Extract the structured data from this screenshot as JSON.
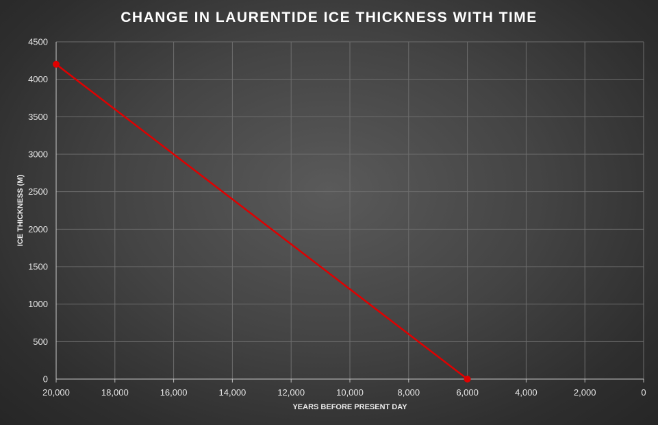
{
  "chart_data": {
    "type": "line",
    "title": "CHANGE IN LAURENTIDE ICE THICKNESS WITH TIME",
    "xlabel": "YEARS BEFORE PRESENT DAY",
    "ylabel": "ICE THICKNESS (M)",
    "x_reversed": true,
    "xlim": [
      20000,
      0
    ],
    "ylim": [
      0,
      4500
    ],
    "x_ticks": [
      "20,000",
      "18,000",
      "16,000",
      "14,000",
      "12,000",
      "10,000",
      "8,000",
      "6,000",
      "4,000",
      "2,000",
      "0"
    ],
    "x_tick_values": [
      20000,
      18000,
      16000,
      14000,
      12000,
      10000,
      8000,
      6000,
      4000,
      2000,
      0
    ],
    "y_ticks": [
      "0",
      "500",
      "1000",
      "1500",
      "2000",
      "2500",
      "3000",
      "3500",
      "4000",
      "4500"
    ],
    "y_tick_values": [
      0,
      500,
      1000,
      1500,
      2000,
      2500,
      3000,
      3500,
      4000,
      4500
    ],
    "grid": true,
    "series": [
      {
        "color": "#e00000",
        "points": [
          {
            "x": 20000,
            "y": 4200
          },
          {
            "x": 6000,
            "y": 0
          }
        ]
      }
    ]
  }
}
